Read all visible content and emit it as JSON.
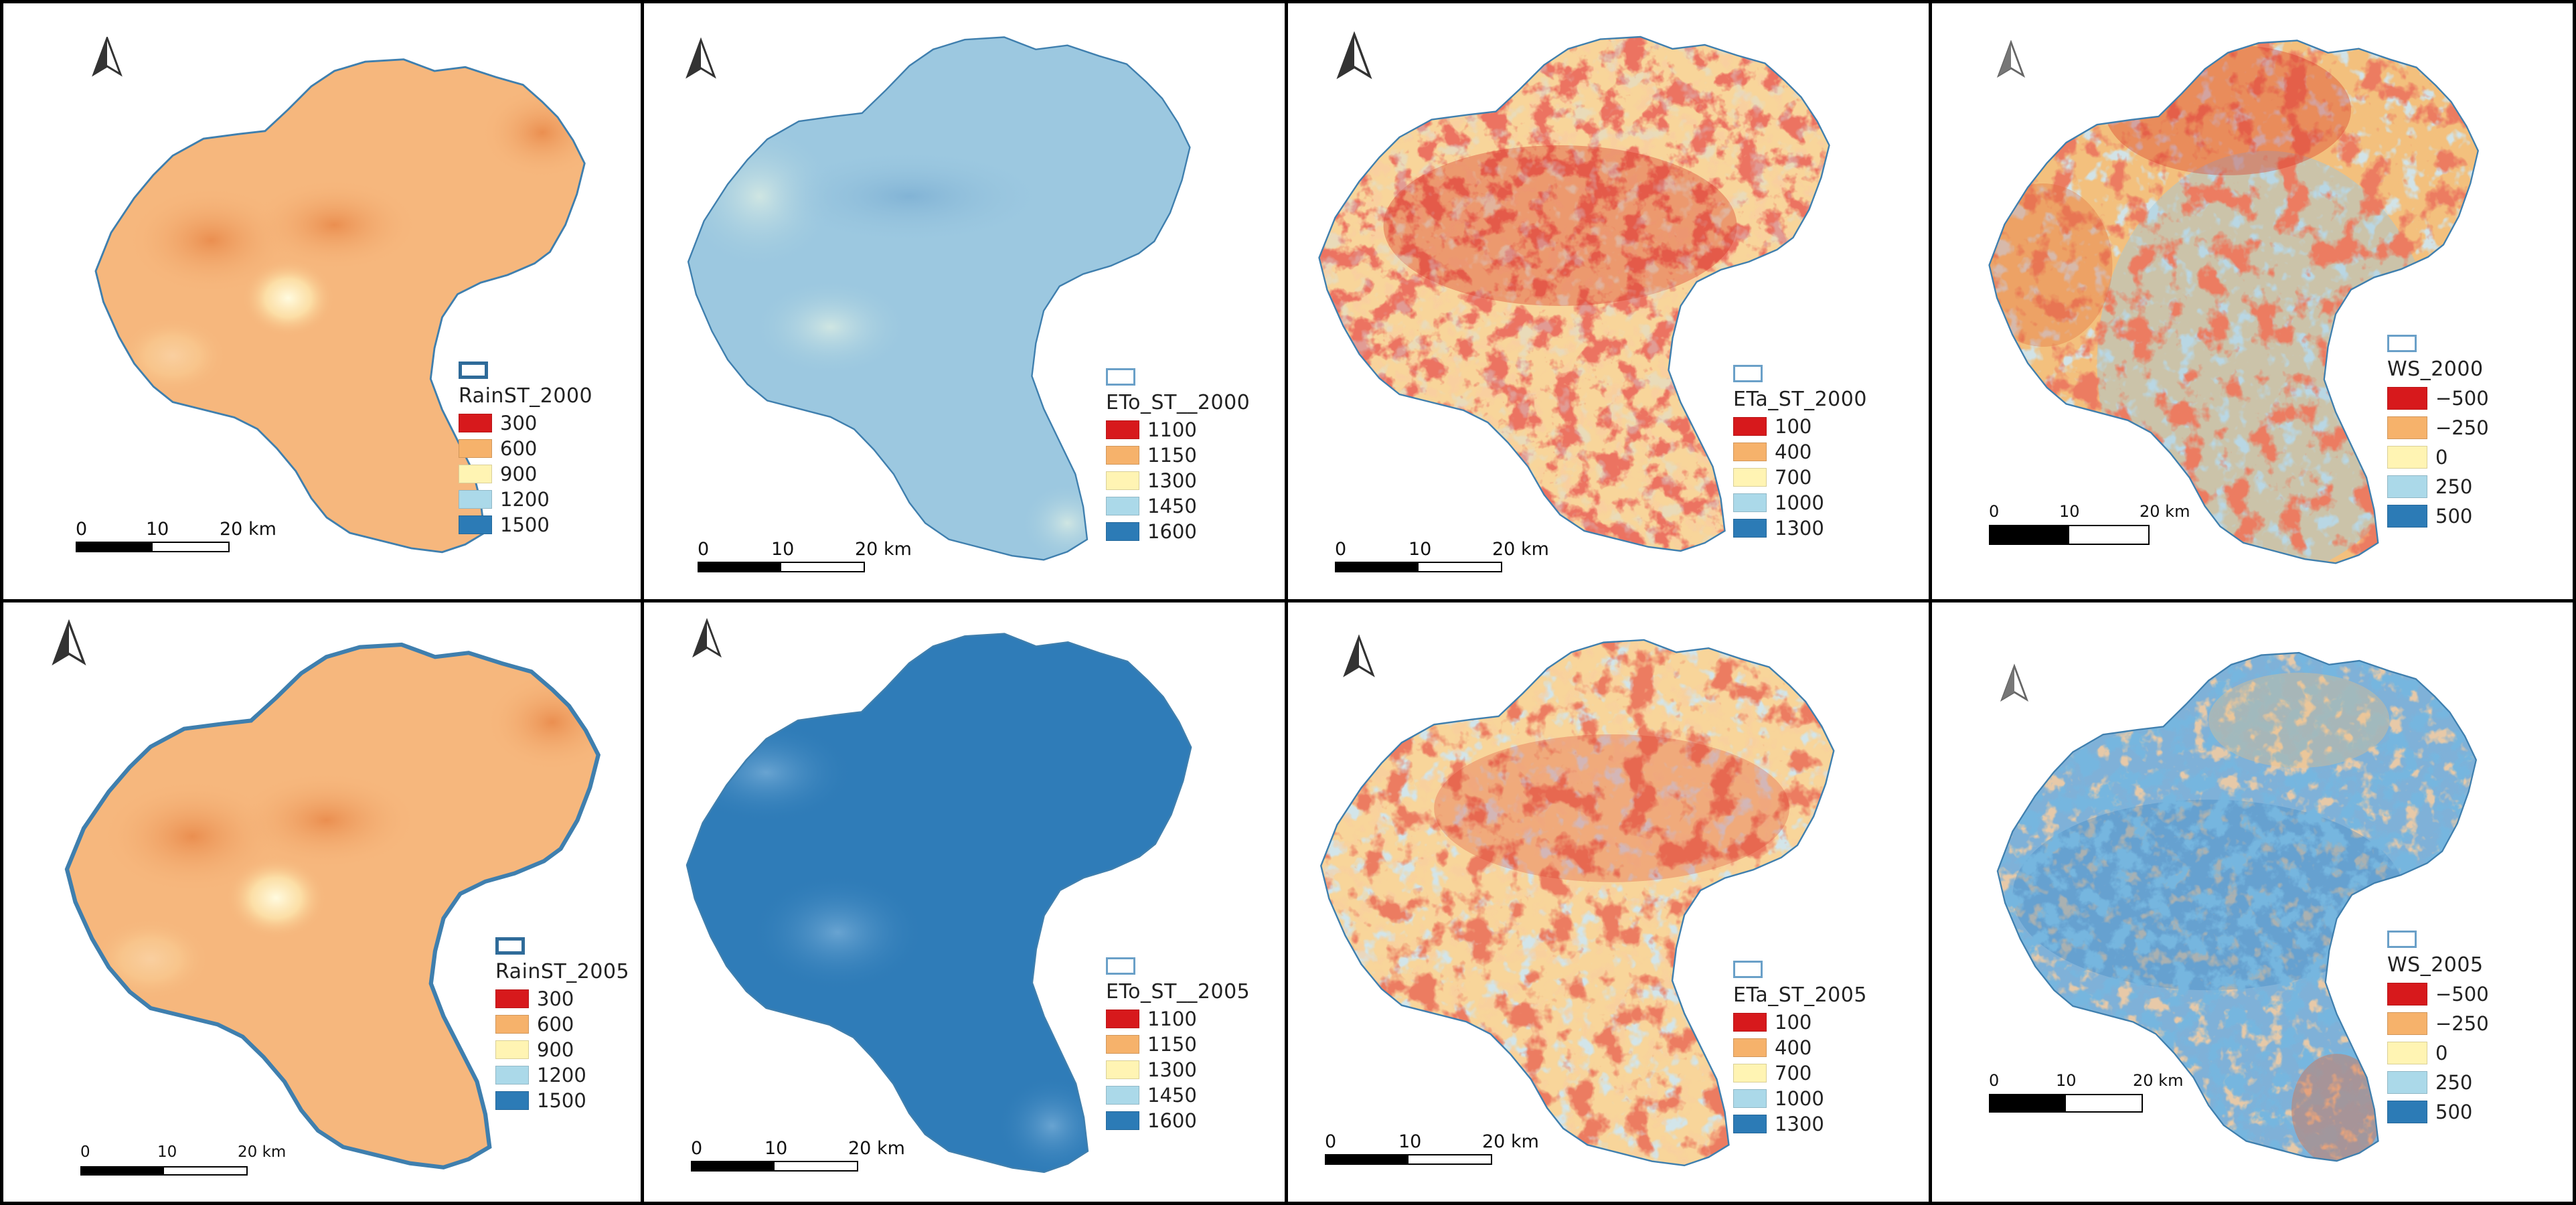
{
  "colors": {
    "basin_outline": "#3f7fae",
    "rain_fill": "#f6b77d",
    "eto2000_fill": "#9cc8e0",
    "eto2005_fill": "#2f7cb8",
    "eta_base": "#f8d59a",
    "eta_hot": "#d62a1e",
    "ws2000_base": "#f3c07d",
    "ws2005_base": "#7fb1d8"
  },
  "panels": [
    {
      "id": "rain-2000",
      "legend": {
        "title": "RainST_2000",
        "classes": [
          {
            "label": "300",
            "color": "#d7191c"
          },
          {
            "label": "600",
            "color": "#f6b26b"
          },
          {
            "label": "900",
            "color": "#fff4b3"
          },
          {
            "label": "1200",
            "color": "#abd9e9"
          },
          {
            "label": "1500",
            "color": "#2c7bb6"
          }
        ]
      },
      "scale": {
        "ticks": [
          "0",
          "10",
          "20 km"
        ]
      }
    },
    {
      "id": "eto-2000",
      "legend": {
        "title": "ETo_ST__2000",
        "classes": [
          {
            "label": "1100",
            "color": "#d7191c"
          },
          {
            "label": "1150",
            "color": "#f6b26b"
          },
          {
            "label": "1300",
            "color": "#fff4b3"
          },
          {
            "label": "1450",
            "color": "#abd9e9"
          },
          {
            "label": "1600",
            "color": "#2c7bb6"
          }
        ]
      },
      "scale": {
        "ticks": [
          "0",
          "10",
          "20 km"
        ]
      }
    },
    {
      "id": "eta-2000",
      "legend": {
        "title": "ETa_ST_2000",
        "classes": [
          {
            "label": "100",
            "color": "#d7191c"
          },
          {
            "label": "400",
            "color": "#f6b26b"
          },
          {
            "label": "700",
            "color": "#fff4b3"
          },
          {
            "label": "1000",
            "color": "#abd9e9"
          },
          {
            "label": "1300",
            "color": "#2c7bb6"
          }
        ]
      },
      "scale": {
        "ticks": [
          "0",
          "10",
          "20 km"
        ]
      }
    },
    {
      "id": "ws-2000",
      "legend": {
        "title": "WS_2000",
        "classes": [
          {
            "label": "−500",
            "color": "#d7191c"
          },
          {
            "label": "−250",
            "color": "#f6b26b"
          },
          {
            "label": "0",
            "color": "#fff4b3"
          },
          {
            "label": "250",
            "color": "#abd9e9"
          },
          {
            "label": "500",
            "color": "#2c7bb6"
          }
        ]
      },
      "scale": {
        "ticks": [
          "0",
          "10",
          "20 km"
        ]
      }
    },
    {
      "id": "rain-2005",
      "legend": {
        "title": "RainST_2005",
        "classes": [
          {
            "label": "300",
            "color": "#d7191c"
          },
          {
            "label": "600",
            "color": "#f6b26b"
          },
          {
            "label": "900",
            "color": "#fff4b3"
          },
          {
            "label": "1200",
            "color": "#abd9e9"
          },
          {
            "label": "1500",
            "color": "#2c7bb6"
          }
        ]
      },
      "scale": {
        "ticks": [
          "0",
          "10",
          "20 km"
        ]
      }
    },
    {
      "id": "eto-2005",
      "legend": {
        "title": "ETo_ST__2005",
        "classes": [
          {
            "label": "1100",
            "color": "#d7191c"
          },
          {
            "label": "1150",
            "color": "#f6b26b"
          },
          {
            "label": "1300",
            "color": "#fff4b3"
          },
          {
            "label": "1450",
            "color": "#abd9e9"
          },
          {
            "label": "1600",
            "color": "#2c7bb6"
          }
        ]
      },
      "scale": {
        "ticks": [
          "0",
          "10",
          "20 km"
        ]
      }
    },
    {
      "id": "eta-2005",
      "legend": {
        "title": "ETa_ST_2005",
        "classes": [
          {
            "label": "100",
            "color": "#d7191c"
          },
          {
            "label": "400",
            "color": "#f6b26b"
          },
          {
            "label": "700",
            "color": "#fff4b3"
          },
          {
            "label": "1000",
            "color": "#abd9e9"
          },
          {
            "label": "1300",
            "color": "#2c7bb6"
          }
        ]
      },
      "scale": {
        "ticks": [
          "0",
          "10",
          "20 km"
        ]
      }
    },
    {
      "id": "ws-2005",
      "legend": {
        "title": "WS_2005",
        "classes": [
          {
            "label": "−500",
            "color": "#d7191c"
          },
          {
            "label": "−250",
            "color": "#f6b26b"
          },
          {
            "label": "0",
            "color": "#fff4b3"
          },
          {
            "label": "250",
            "color": "#abd9e9"
          },
          {
            "label": "500",
            "color": "#2c7bb6"
          }
        ]
      },
      "scale": {
        "ticks": [
          "0",
          "10",
          "20 km"
        ]
      }
    }
  ],
  "icons": {
    "north_arrow": "north-arrow-icon"
  }
}
